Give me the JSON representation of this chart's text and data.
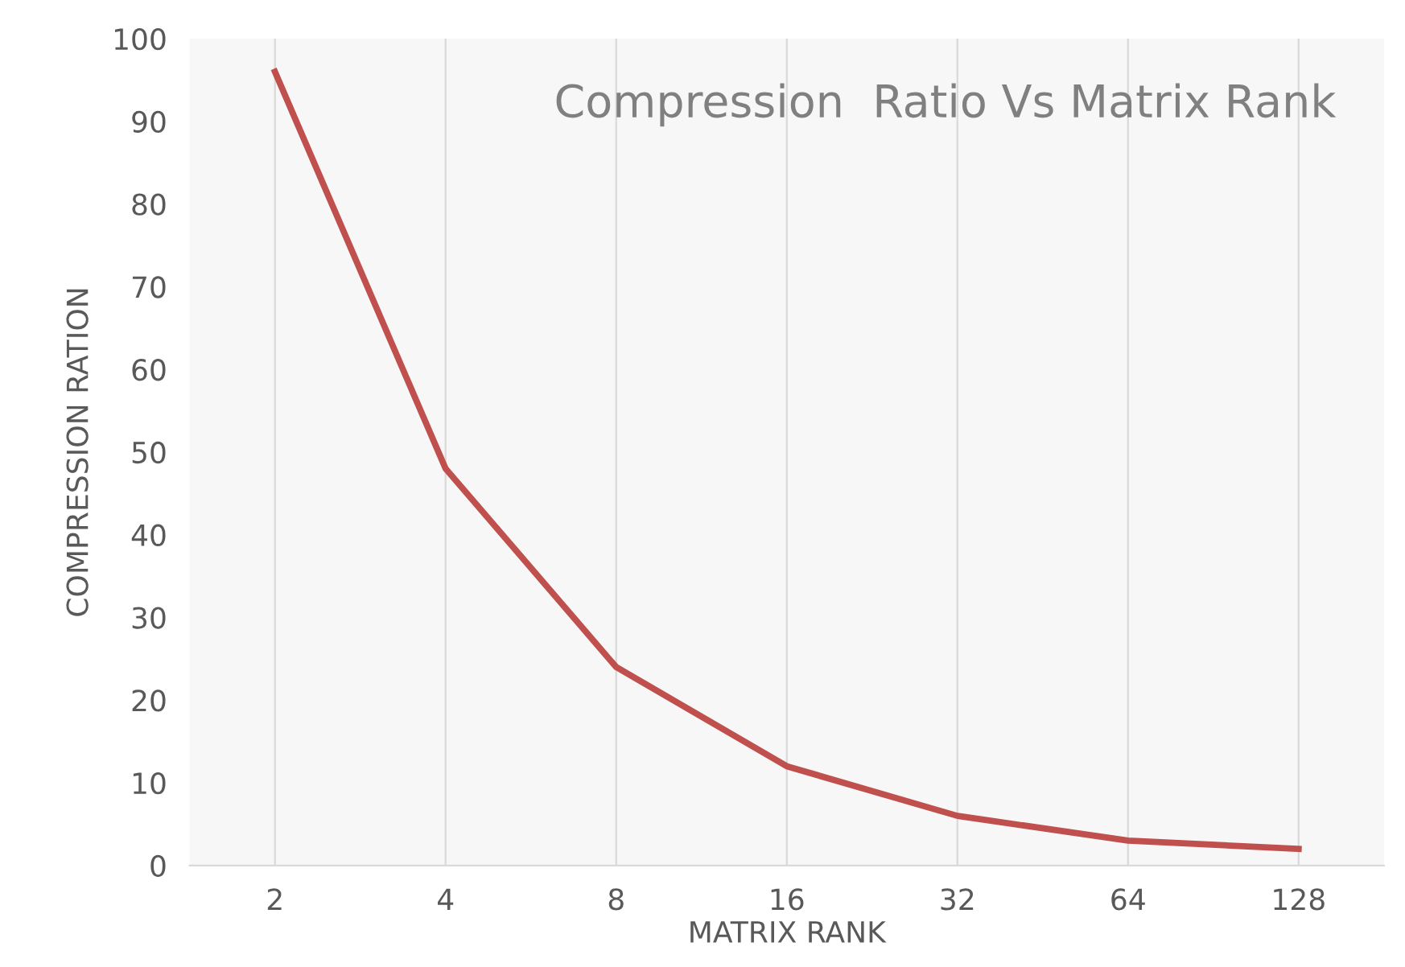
{
  "chart_data": {
    "type": "line",
    "title": "Compression  Ratio Vs Matrix Rank",
    "xlabel": "MATRIX RANK",
    "ylabel": "COMPRESSION RATION",
    "categories": [
      "2",
      "4",
      "8",
      "16",
      "32",
      "64",
      "128"
    ],
    "series": [
      {
        "color": "#c0504d",
        "values": [
          96,
          48,
          24,
          12,
          6,
          3,
          2
        ]
      }
    ],
    "ylim": [
      0,
      100
    ],
    "yticks": [
      0,
      10,
      20,
      30,
      40,
      50,
      60,
      70,
      80,
      90,
      100
    ],
    "grid": "x",
    "legend": false,
    "marker": "none",
    "line_style": "solid"
  }
}
